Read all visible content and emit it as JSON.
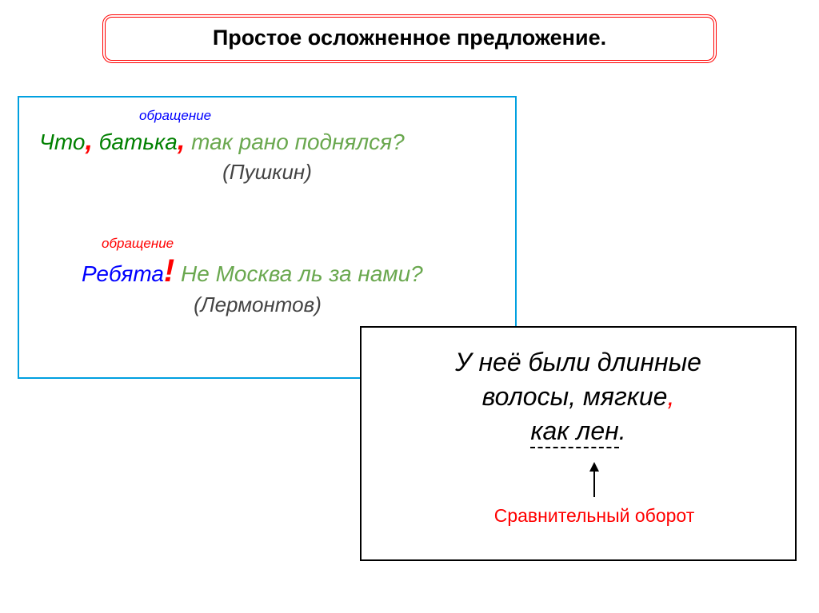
{
  "title": "Простое осложненное предложение.",
  "colors": {
    "title_border": "#ff0000",
    "left_box_border": "#00a0e0",
    "right_box_border": "#000000",
    "green": "#008000",
    "light_green": "#6aa84f",
    "red": "#ff0000",
    "blue": "#0000ff",
    "black": "#000000",
    "background": "#ffffff"
  },
  "left_box": {
    "example1": {
      "annotation": "обращение",
      "annotation_color": "#0000ff",
      "word1": "Что",
      "comma1": ",",
      "word2": "батька",
      "comma2": ",",
      "rest": " так рано поднялся?",
      "attribution": "(Пушкин)",
      "font_size": 28,
      "ann_font_size": 17
    },
    "example2": {
      "annotation": "обращение",
      "annotation_color": "#ff0000",
      "word1": "Ребята",
      "excl": "!",
      "rest": " Не Москва ль за нами?",
      "attribution": "(Лермонтов)",
      "font_size": 28,
      "ann_font_size": 17
    }
  },
  "right_box": {
    "line1": "У неё были длинные",
    "line2_a": "волосы, мягкие",
    "line2_comma": ",",
    "line3_underlined": "как лен",
    "line3_period": ".",
    "caption": "Сравнительный оборот",
    "font_size": 32,
    "caption_font_size": 23,
    "caption_color": "#ff0000",
    "underline_style": "dashed"
  }
}
